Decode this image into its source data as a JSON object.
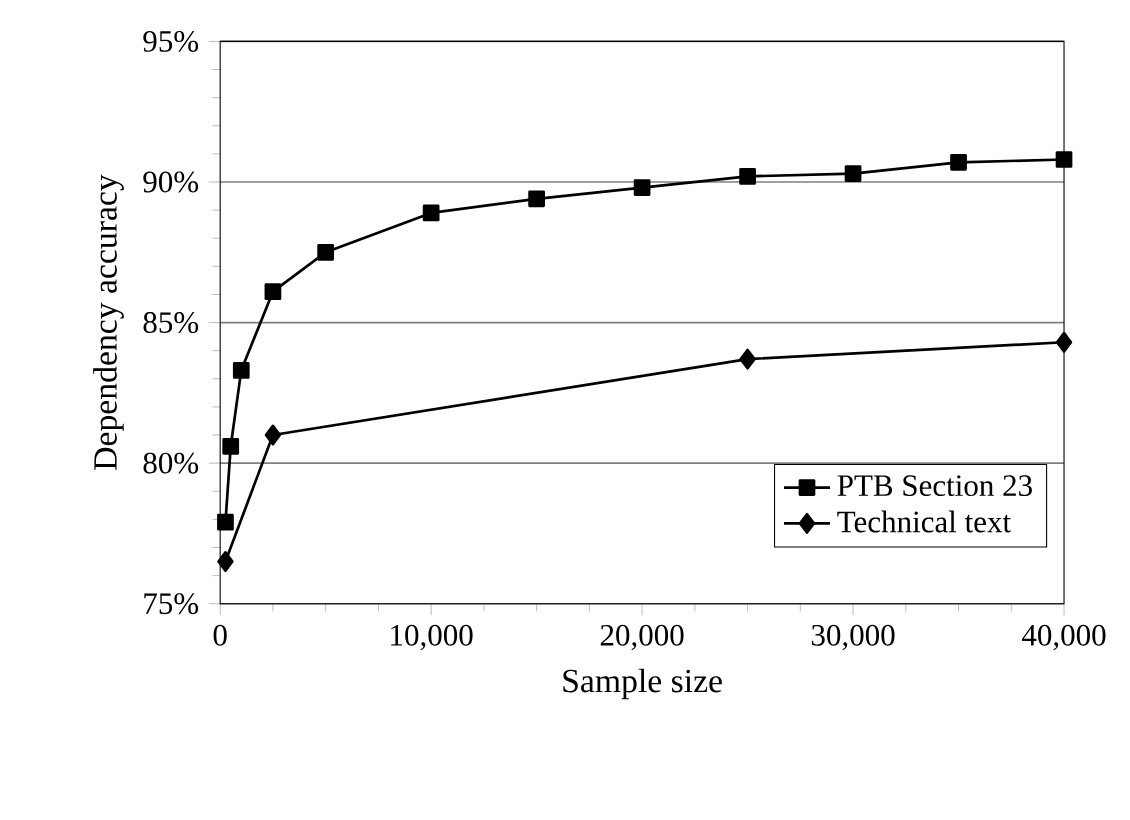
{
  "chart_data": {
    "type": "line",
    "xlabel": "Sample size",
    "ylabel": "Dependency accuracy",
    "series": [
      {
        "name": "PTB Section 23",
        "color": "#000000",
        "marker": "square",
        "x": [
          250,
          500,
          1000,
          2500,
          5000,
          10000,
          15000,
          20000,
          25000,
          30000,
          35000,
          40000
        ],
        "values": [
          77.9,
          80.6,
          83.3,
          86.1,
          87.5,
          88.9,
          89.4,
          89.8,
          90.2,
          90.3,
          90.7,
          90.8
        ]
      },
      {
        "name": "Technical text",
        "color": "#000000",
        "marker": "diamond",
        "x": [
          250,
          2500,
          25000,
          40000
        ],
        "values": [
          76.5,
          81.0,
          83.7,
          84.3
        ]
      }
    ],
    "xlim": [
      0,
      40000
    ],
    "ylim": [
      75,
      95
    ],
    "xticks": [
      0,
      {
        "value": 10000,
        "label": "10,000"
      },
      {
        "value": 20000,
        "label": "20,000"
      },
      {
        "value": 30000,
        "label": "30,000"
      },
      {
        "value": 40000,
        "label": "40,000"
      }
    ],
    "yticks": [
      {
        "value": 75,
        "label": "75%"
      },
      {
        "value": 80,
        "label": "80%"
      },
      {
        "value": 85,
        "label": "85%"
      },
      {
        "value": 90,
        "label": "90%"
      },
      {
        "value": 95,
        "label": "95%"
      }
    ],
    "grid": "y",
    "legend": "bottom right",
    "line_style": "solid"
  }
}
